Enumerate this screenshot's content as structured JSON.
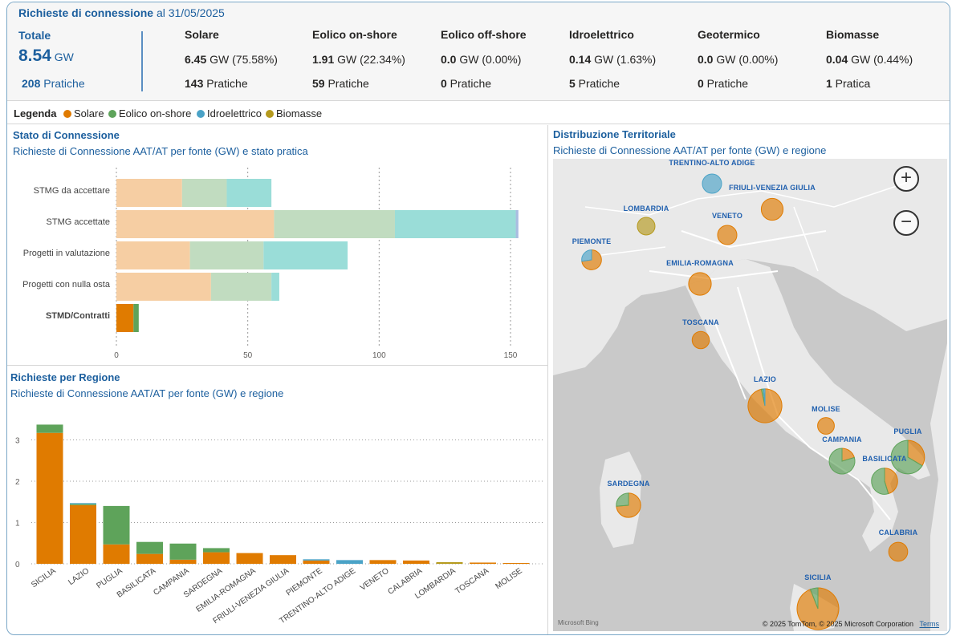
{
  "header": {
    "title_bold": "Richieste di connessione",
    "title_rest": " al 31/05/2025",
    "total_label": "Totale",
    "total_value": "8.54",
    "total_unit": " GW",
    "total_count": "208",
    "total_count_label": " Pratiche",
    "sources": [
      {
        "name": "Solare",
        "gw": "6.45",
        "rest": " GW (75.58%)",
        "count": "143",
        "count_label": " Pratiche"
      },
      {
        "name": "Eolico on-shore",
        "gw": "1.91",
        "rest": " GW (22.34%)",
        "count": "59",
        "count_label": " Pratiche"
      },
      {
        "name": "Eolico off-shore",
        "gw": "0.0",
        "rest": " GW (0.00%)",
        "count": "0",
        "count_label": " Pratiche"
      },
      {
        "name": "Idroelettrico",
        "gw": "0.14",
        "rest": " GW (1.63%)",
        "count": "5",
        "count_label": " Pratiche"
      },
      {
        "name": "Geotermico",
        "gw": "0.0",
        "rest": " GW (0.00%)",
        "count": "0",
        "count_label": " Pratiche"
      },
      {
        "name": "Biomasse",
        "gw": "0.04",
        "rest": " GW (0.44%)",
        "count": "1",
        "count_label": " Pratica"
      }
    ]
  },
  "legend": {
    "title": "Legenda",
    "items": [
      {
        "label": "Solare",
        "color": "#e07b00"
      },
      {
        "label": "Eolico on-shore",
        "color": "#5ea35a"
      },
      {
        "label": "Idroelettrico",
        "color": "#4ba3c7"
      },
      {
        "label": "Biomasse",
        "color": "#b59a1e"
      }
    ]
  },
  "stato": {
    "title": "Stato di Connessione",
    "subtitle": "Richieste di Connessione AAT/AT per fonte (GW) e stato pratica"
  },
  "regione": {
    "title": "Richieste per Regione",
    "subtitle": "Richieste di Connessione AAT/AT per fonte (GW) e regione"
  },
  "mappa": {
    "title": "Distribuzione Territoriale",
    "subtitle": "Richieste di Connessione AAT/AT per fonte (GW) e regione",
    "zoom_in": "+",
    "zoom_out": "−",
    "copyright": "© 2025 TomTom, © 2025 Microsoft Corporation",
    "terms": "Terms",
    "bing": "Microsoft Bing",
    "regions": [
      "TRENTINO-ALTO ADIGE",
      "FRIULI-VENEZIA GIULIA",
      "LOMBARDIA",
      "VENETO",
      "PIEMONTE",
      "EMILIA-ROMAGNA",
      "TOSCANA",
      "LAZIO",
      "MOLISE",
      "CAMPANIA",
      "PUGLIA",
      "BASILICATA",
      "SARDEGNA",
      "CALABRIA",
      "SICILIA"
    ]
  },
  "chart_data": [
    {
      "type": "bar",
      "orientation": "horizontal",
      "stacked": true,
      "categories": [
        "STMG da accettare",
        "STMG accettate",
        "Progetti in valutazione",
        "Progetti con nulla osta",
        "STMD/Contratti"
      ],
      "series": [
        {
          "name": "Solare",
          "color": "#e07b00",
          "values": [
            25,
            60,
            28,
            36,
            6.5
          ]
        },
        {
          "name": "Eolico on-shore",
          "color": "#5ea35a",
          "values": [
            17,
            46,
            28,
            23,
            2
          ]
        },
        {
          "name": "Idroelettrico",
          "color": "#4ba3c7",
          "values": [
            17,
            46,
            32,
            3,
            0
          ]
        },
        {
          "name": "Biomasse",
          "color": "#b59a1e",
          "values": [
            0,
            1,
            0,
            0,
            0
          ]
        }
      ],
      "xticks": [
        0,
        50,
        100,
        150
      ],
      "xlim": [
        0,
        160
      ]
    },
    {
      "type": "bar",
      "stacked": true,
      "categories": [
        "SICILIA",
        "LAZIO",
        "PUGLIA",
        "BASILICATA",
        "CAMPANIA",
        "SARDEGNA",
        "EMILIA-ROMAGNA",
        "FRIULI-VENEZIA GIULIA",
        "PIEMONTE",
        "TRENTINO-ALTO ADIGE",
        "VENETO",
        "CALABRIA",
        "LOMBARDIA",
        "TOSCANA",
        "MOLISE"
      ],
      "series": [
        {
          "name": "Solare",
          "color": "#e07b00",
          "values": [
            3.17,
            1.42,
            0.47,
            0.24,
            0.1,
            0.28,
            0.26,
            0.21,
            0.08,
            0,
            0.09,
            0.08,
            0,
            0.03,
            0.02
          ]
        },
        {
          "name": "Eolico on-shore",
          "color": "#5ea35a",
          "values": [
            0.2,
            0.03,
            0.93,
            0.29,
            0.39,
            0.1,
            0,
            0,
            0,
            0,
            0,
            0,
            0,
            0,
            0
          ]
        },
        {
          "name": "Idroelettrico",
          "color": "#4ba3c7",
          "values": [
            0,
            0.02,
            0,
            0,
            0,
            0,
            0,
            0,
            0.03,
            0.09,
            0,
            0,
            0,
            0,
            0
          ]
        },
        {
          "name": "Biomasse",
          "color": "#b59a1e",
          "values": [
            0,
            0,
            0,
            0,
            0,
            0,
            0,
            0,
            0,
            0,
            0,
            0,
            0.04,
            0,
            0
          ]
        }
      ],
      "yticks": [
        0,
        1,
        2,
        3
      ],
      "ylim": [
        0,
        3.5
      ]
    }
  ]
}
